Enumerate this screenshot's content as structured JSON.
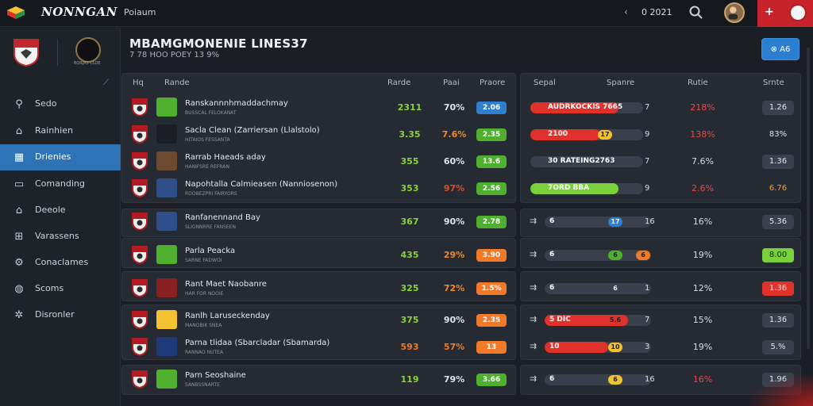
{
  "topbar": {
    "brand": "NONNGAN",
    "menu": "Poiaum",
    "date": "0 2021",
    "nav_arrow": "‹",
    "plus": "+"
  },
  "sidebar": {
    "crest_caption": "BORJAS CLOE",
    "items": [
      {
        "label": "Sedo",
        "icon": "search-icon",
        "active": false
      },
      {
        "label": "Rainhien",
        "icon": "home-icon",
        "active": false
      },
      {
        "label": "Drienies",
        "icon": "building-icon",
        "active": true
      },
      {
        "label": "Comanding",
        "icon": "folder-icon",
        "active": false
      },
      {
        "label": "Deeole",
        "icon": "document-icon",
        "active": false
      },
      {
        "label": "Varassens",
        "icon": "grid-icon",
        "active": false
      },
      {
        "label": "Conaclames",
        "icon": "gear-icon",
        "active": false
      },
      {
        "label": "Scoms",
        "icon": "globe-icon",
        "active": false
      },
      {
        "label": "Disronler",
        "icon": "settings-icon",
        "active": false
      }
    ]
  },
  "main": {
    "title": "MBAMGMONENIE LINES37",
    "subtitle": "7 78 HOO POEY 13 9%",
    "action_button": "⊗ A6"
  },
  "left_headers": {
    "col1": "Hq",
    "col2": "Rande",
    "col3": "Rarde",
    "col4": "Paai",
    "col5": "Praore"
  },
  "right_headers": {
    "col1": "Sepal",
    "col2": "Spanre",
    "col3": "Rutie",
    "col4": "Srnte"
  },
  "left_rows": [
    {
      "title": "Ranskannnhmaddachmay",
      "sub": "BUSSCAL FELOKANAT",
      "num1": "2311",
      "num1_color": "#8bd23a",
      "pct": "70%",
      "pct_color": "#dfe3e8",
      "pill": "2.06",
      "pill_color": "#2e7fd0"
    },
    {
      "title": "Sacla Clean (Zarriersan (Llalstolo)",
      "sub": "HITAIOS FESSANTA",
      "num1": "3.35",
      "num1_color": "#8bd23a",
      "pct": "7.6%",
      "pct_color": "#f08a2c",
      "pill": "2.35",
      "pill_color": "#4fb030"
    },
    {
      "title": "Rarrab Haeads aday",
      "sub": "HANIFSRE REFRAN",
      "num1": "355",
      "num1_color": "#8bd23a",
      "pct": "60%",
      "pct_color": "#dfe3e8",
      "pill": "13.6",
      "pill_color": "#4fb030"
    },
    {
      "title": "Napohtalla Calmieasen (Nanniosenon)",
      "sub": "ROOBEZPRI FAIRYORS",
      "num1": "353",
      "num1_color": "#8bd23a",
      "pct": "97%",
      "pct_color": "#e54a2a",
      "pill": "2.56",
      "pill_color": "#4fb030"
    },
    {
      "title": "Ranfanennand Bay",
      "sub": "SLIGNNRRE FANSEEN",
      "num1": "367",
      "num1_color": "#8bd23a",
      "pct": "90%",
      "pct_color": "#dfe3e8",
      "pill": "2.78",
      "pill_color": "#4fb030"
    },
    {
      "title": "Parla Peacka",
      "sub": "SARNE FADWOI",
      "num1": "435",
      "num1_color": "#8bd23a",
      "pct": "29%",
      "pct_color": "#f08a2c",
      "pill": "3.90",
      "pill_color": "#f07a2a"
    },
    {
      "title": "Rant Maet Naobanre",
      "sub": "HAR FOR NOOIE",
      "num1": "325",
      "num1_color": "#8bd23a",
      "pct": "72%",
      "pct_color": "#f08a2c",
      "pill": "1.5%",
      "pill_color": "#f07a2a"
    },
    {
      "title": "Ranlh Laruseckenday",
      "sub": "MANOBIK SNEA",
      "num1": "375",
      "num1_color": "#8bd23a",
      "pct": "90%",
      "pct_color": "#dfe3e8",
      "pill": "2.35",
      "pill_color": "#f07a2a"
    },
    {
      "title": "Parna tlidaa (Sbarcladar (Sbamarda)",
      "sub": "RANNAO NUTEA",
      "num1": "593",
      "num1_color": "#f07a2a",
      "pct": "57%",
      "pct_color": "#f07a2a",
      "pill": "13",
      "pill_color": "#f07a2a"
    },
    {
      "title": "Parn Seoshaine",
      "sub": "SANBSSNARTE",
      "num1": "119",
      "num1_color": "#8bd23a",
      "pct": "79%",
      "pct_color": "#dfe3e8",
      "pill": "3.66",
      "pill_color": "#4fb030"
    }
  ],
  "right_rows": [
    {
      "bar_text": "AUDRKOCKIS 7665",
      "fill": 0.78,
      "fill_color": "#e0312b",
      "dot": "",
      "dot_color": "",
      "small": "7",
      "pct": "218%",
      "pct_color": "#e54a4a",
      "badge": "1.26",
      "badge_color": "#3a414c"
    },
    {
      "bar_text": "2100",
      "fill": 0.62,
      "fill_color": "#e0312b",
      "dot": "17",
      "dot_color": "#f2c230",
      "small": "9",
      "pct": "138%",
      "pct_color": "#e54a4a",
      "badge": "83%",
      "badge_color": "#262b33"
    },
    {
      "bar_text": "30 RATEING2763",
      "fill": 0.0,
      "fill_color": "#39404b",
      "dot": "",
      "dot_color": "",
      "small": "7",
      "pct": "7.6%",
      "pct_color": "#d7dce3",
      "badge": "1.36",
      "badge_color": "#3a414c"
    },
    {
      "bar_text": "7ORD BBA",
      "fill": 0.78,
      "fill_color": "#7ad03a",
      "dot": "",
      "dot_color": "",
      "small": "9",
      "pct": "2.6%",
      "pct_color": "#e54a4a",
      "badge": "6.76",
      "badge_color": "#262b33",
      "badge_text_color": "#f0a030"
    },
    {
      "bar_text": "6",
      "fill": 0.0,
      "fill_color": "#39404b",
      "dot": "17",
      "dot_color": "#2e7fd0",
      "small": "16",
      "pct": "16%",
      "pct_color": "#d7dce3",
      "badge": "5.36",
      "badge_color": "#3a414c"
    },
    {
      "bar_text": "6",
      "fill": 0.0,
      "fill_color": "#39404b",
      "dot": "6",
      "dot_color": "#4fb030",
      "dot2": "6",
      "dot2_color": "#f07a2a",
      "small": "",
      "pct": "19%",
      "pct_color": "#d7dce3",
      "badge": "8.00",
      "badge_color": "#7ad03a"
    },
    {
      "bar_text": "6",
      "fill": 0.0,
      "fill_color": "#39404b",
      "dot": "6",
      "dot_color": "#39404b",
      "small": "1",
      "pct": "12%",
      "pct_color": "#d7dce3",
      "badge": "1.36",
      "badge_color": "#e0312b"
    },
    {
      "bar_text": "5 DIC",
      "fill": 0.78,
      "fill_color": "#e0312b",
      "dot": "5.6",
      "dot_color": "#e0312b",
      "small": "7",
      "pct": "15%",
      "pct_color": "#d7dce3",
      "badge": "1.36",
      "badge_color": "#3a414c"
    },
    {
      "bar_text": "10",
      "fill": 0.6,
      "fill_color": "#e0312b",
      "dot": "10",
      "dot_color": "#f2c230",
      "small": "3",
      "pct": "19%",
      "pct_color": "#d7dce3",
      "badge": "5.%",
      "badge_color": "#3a414c"
    },
    {
      "bar_text": "6",
      "fill": 0.0,
      "fill_color": "#39404b",
      "dot": "6",
      "dot_color": "#f2c230",
      "small": "16",
      "pct": "16%",
      "pct_color": "#e54a4a",
      "badge": "1.96",
      "badge_color": "#3a414c"
    }
  ]
}
